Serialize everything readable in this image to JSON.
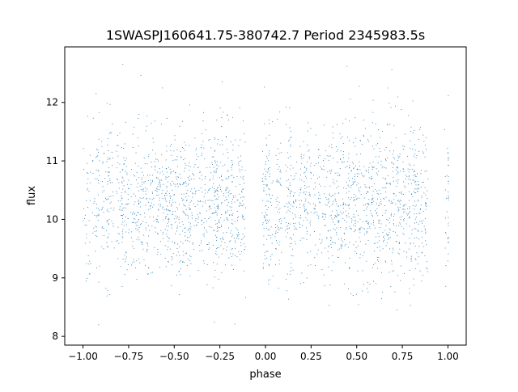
{
  "chart_data": {
    "type": "scatter",
    "title": "1SWASPJ160641.75-380742.7 Period 2345983.5s",
    "xlabel": "phase",
    "ylabel": "flux",
    "xlim": [
      -1.1,
      1.1
    ],
    "ylim": [
      7.85,
      12.95
    ],
    "x_ticks": [
      -1.0,
      -0.75,
      -0.5,
      -0.25,
      0.0,
      0.25,
      0.5,
      0.75,
      1.0
    ],
    "x_tick_labels": [
      "−1.00",
      "−0.75",
      "−0.50",
      "−0.25",
      "0.00",
      "0.25",
      "0.50",
      "0.75",
      "1.00"
    ],
    "y_ticks": [
      8,
      9,
      10,
      11,
      12
    ],
    "y_tick_labels": [
      "8",
      "9",
      "10",
      "11",
      "12"
    ],
    "grid": false,
    "legend": "none",
    "marker_color": "#1f77b4",
    "series": [
      {
        "note_phase_range": [
          -1.0,
          1.0
        ],
        "observation_clusters_phase": [
          -0.98,
          -0.93,
          -0.88,
          -0.85,
          -0.8,
          -0.77,
          -0.72,
          -0.68,
          -0.64,
          -0.6,
          -0.56,
          -0.53,
          -0.5,
          -0.47,
          -0.43,
          -0.4,
          -0.36,
          -0.32,
          -0.28,
          -0.26,
          -0.23,
          -0.2,
          -0.17,
          -0.13,
          0.0,
          0.02,
          0.07,
          0.12,
          0.15,
          0.2,
          0.23,
          0.28,
          0.32,
          0.36,
          0.4,
          0.44,
          0.47,
          0.5,
          0.53,
          0.57,
          0.6,
          0.64,
          0.68,
          0.72,
          0.74,
          0.77,
          0.8,
          0.83,
          0.87,
          1.0
        ],
        "median_flux": 10.3,
        "flux_spread": [
          9.0,
          11.5
        ],
        "flux_extremes": [
          8.2,
          12.7
        ]
      }
    ]
  }
}
